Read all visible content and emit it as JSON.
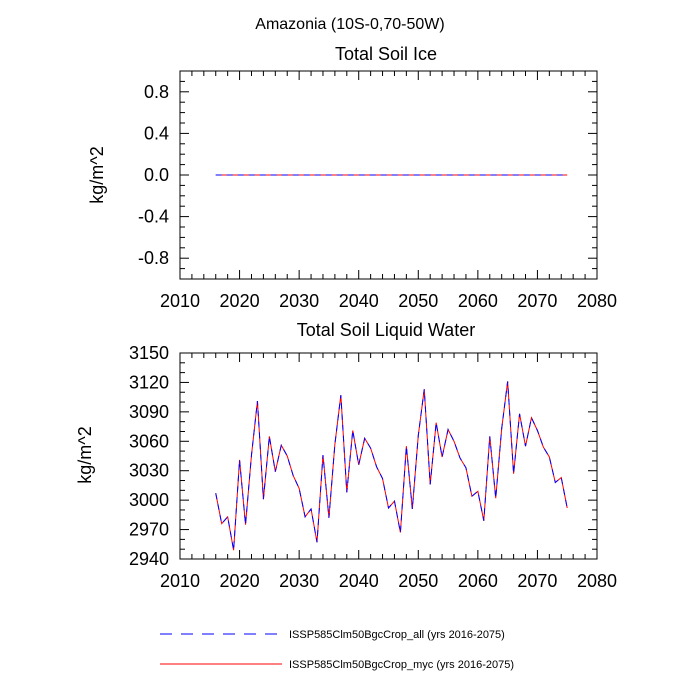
{
  "figure": {
    "title": "Amazonia (10S-0,70-50W)"
  },
  "legend": {
    "entries": [
      {
        "label": "ISSP585Clm50BgcCrop_all (yrs 2016-2075)",
        "color": "#0000ff",
        "dash": "dashed"
      },
      {
        "label": "ISSP585Clm50BgcCrop_myc (yrs 2016-2075)",
        "color": "#ff0000",
        "dash": "solid"
      }
    ],
    "placement": "bottom"
  },
  "chart_data": [
    {
      "type": "line",
      "title": "Total Soil Ice",
      "xlabel": "",
      "ylabel": "kg/m^2",
      "xlim": [
        2010,
        2080
      ],
      "ylim": [
        -1.0,
        1.0
      ],
      "xticks": [
        "2010",
        "2020",
        "2030",
        "2040",
        "2050",
        "2060",
        "2070",
        "2080"
      ],
      "yticks": [
        "-0.8",
        "-0.4",
        "0.0",
        "0.4",
        "0.8"
      ],
      "grid": false,
      "x": [
        2016,
        2017,
        2018,
        2019,
        2020,
        2021,
        2022,
        2023,
        2024,
        2025,
        2026,
        2027,
        2028,
        2029,
        2030,
        2031,
        2032,
        2033,
        2034,
        2035,
        2036,
        2037,
        2038,
        2039,
        2040,
        2041,
        2042,
        2043,
        2044,
        2045,
        2046,
        2047,
        2048,
        2049,
        2050,
        2051,
        2052,
        2053,
        2054,
        2055,
        2056,
        2057,
        2058,
        2059,
        2060,
        2061,
        2062,
        2063,
        2064,
        2065,
        2066,
        2067,
        2068,
        2069,
        2070,
        2071,
        2072,
        2073,
        2074,
        2075
      ],
      "series": [
        {
          "name": "ISSP585Clm50BgcCrop_myc (yrs 2016-2075)",
          "color": "#ff0000",
          "dash": "solid",
          "values": [
            0,
            0,
            0,
            0,
            0,
            0,
            0,
            0,
            0,
            0,
            0,
            0,
            0,
            0,
            0,
            0,
            0,
            0,
            0,
            0,
            0,
            0,
            0,
            0,
            0,
            0,
            0,
            0,
            0,
            0,
            0,
            0,
            0,
            0,
            0,
            0,
            0,
            0,
            0,
            0,
            0,
            0,
            0,
            0,
            0,
            0,
            0,
            0,
            0,
            0,
            0,
            0,
            0,
            0,
            0,
            0,
            0,
            0,
            0,
            0
          ]
        },
        {
          "name": "ISSP585Clm50BgcCrop_all (yrs 2016-2075)",
          "color": "#0000ff",
          "dash": "dashed",
          "values": [
            0,
            0,
            0,
            0,
            0,
            0,
            0,
            0,
            0,
            0,
            0,
            0,
            0,
            0,
            0,
            0,
            0,
            0,
            0,
            0,
            0,
            0,
            0,
            0,
            0,
            0,
            0,
            0,
            0,
            0,
            0,
            0,
            0,
            0,
            0,
            0,
            0,
            0,
            0,
            0,
            0,
            0,
            0,
            0,
            0,
            0,
            0,
            0,
            0,
            0,
            0,
            0,
            0,
            0,
            0,
            0,
            0,
            0,
            0,
            0
          ]
        }
      ]
    },
    {
      "type": "line",
      "title": "Total Soil Liquid Water",
      "xlabel": "",
      "ylabel": "kg/m^2",
      "xlim": [
        2010,
        2080
      ],
      "ylim": [
        2940,
        3150
      ],
      "xticks": [
        "2010",
        "2020",
        "2030",
        "2040",
        "2050",
        "2060",
        "2070",
        "2080"
      ],
      "yticks": [
        "2940",
        "2970",
        "3000",
        "3030",
        "3060",
        "3090",
        "3120",
        "3150"
      ],
      "grid": false,
      "x": [
        2016,
        2017,
        2018,
        2019,
        2020,
        2021,
        2022,
        2023,
        2024,
        2025,
        2026,
        2027,
        2028,
        2029,
        2030,
        2031,
        2032,
        2033,
        2034,
        2035,
        2036,
        2037,
        2038,
        2039,
        2040,
        2041,
        2042,
        2043,
        2044,
        2045,
        2046,
        2047,
        2048,
        2049,
        2050,
        2051,
        2052,
        2053,
        2054,
        2055,
        2056,
        2057,
        2058,
        2059,
        2060,
        2061,
        2062,
        2063,
        2064,
        2065,
        2066,
        2067,
        2068,
        2069,
        2070,
        2071,
        2072,
        2073,
        2074,
        2075
      ],
      "series": [
        {
          "name": "ISSP585Clm50BgcCrop_myc (yrs 2016-2075)",
          "color": "#ff0000",
          "dash": "solid",
          "values": [
            3007,
            2976,
            2983,
            2949,
            3041,
            2975,
            3046,
            3101,
            3001,
            3065,
            3029,
            3056,
            3045,
            3025,
            3012,
            2983,
            2991,
            2957,
            3046,
            2982,
            3057,
            3107,
            3008,
            3071,
            3036,
            3063,
            3053,
            3034,
            3022,
            2992,
            2999,
            2967,
            3055,
            2991,
            3066,
            3113,
            3016,
            3079,
            3044,
            3072,
            3060,
            3043,
            3033,
            3004,
            3009,
            2979,
            3065,
            3002,
            3073,
            3121,
            3027,
            3088,
            3055,
            3084,
            3071,
            3054,
            3044,
            3018,
            3023,
            2992
          ]
        },
        {
          "name": "ISSP585Clm50BgcCrop_all (yrs 2016-2075)",
          "color": "#0000ff",
          "dash": "dashed",
          "values": [
            3007,
            2976,
            2983,
            2949,
            3041,
            2975,
            3046,
            3101,
            3001,
            3065,
            3029,
            3056,
            3045,
            3025,
            3012,
            2983,
            2991,
            2957,
            3046,
            2982,
            3057,
            3107,
            3008,
            3071,
            3036,
            3063,
            3053,
            3034,
            3022,
            2992,
            2999,
            2967,
            3055,
            2991,
            3066,
            3113,
            3016,
            3079,
            3044,
            3072,
            3060,
            3043,
            3033,
            3004,
            3009,
            2979,
            3065,
            3002,
            3073,
            3121,
            3027,
            3088,
            3055,
            3084,
            3071,
            3054,
            3044,
            3018,
            3023,
            2992
          ]
        }
      ]
    }
  ]
}
